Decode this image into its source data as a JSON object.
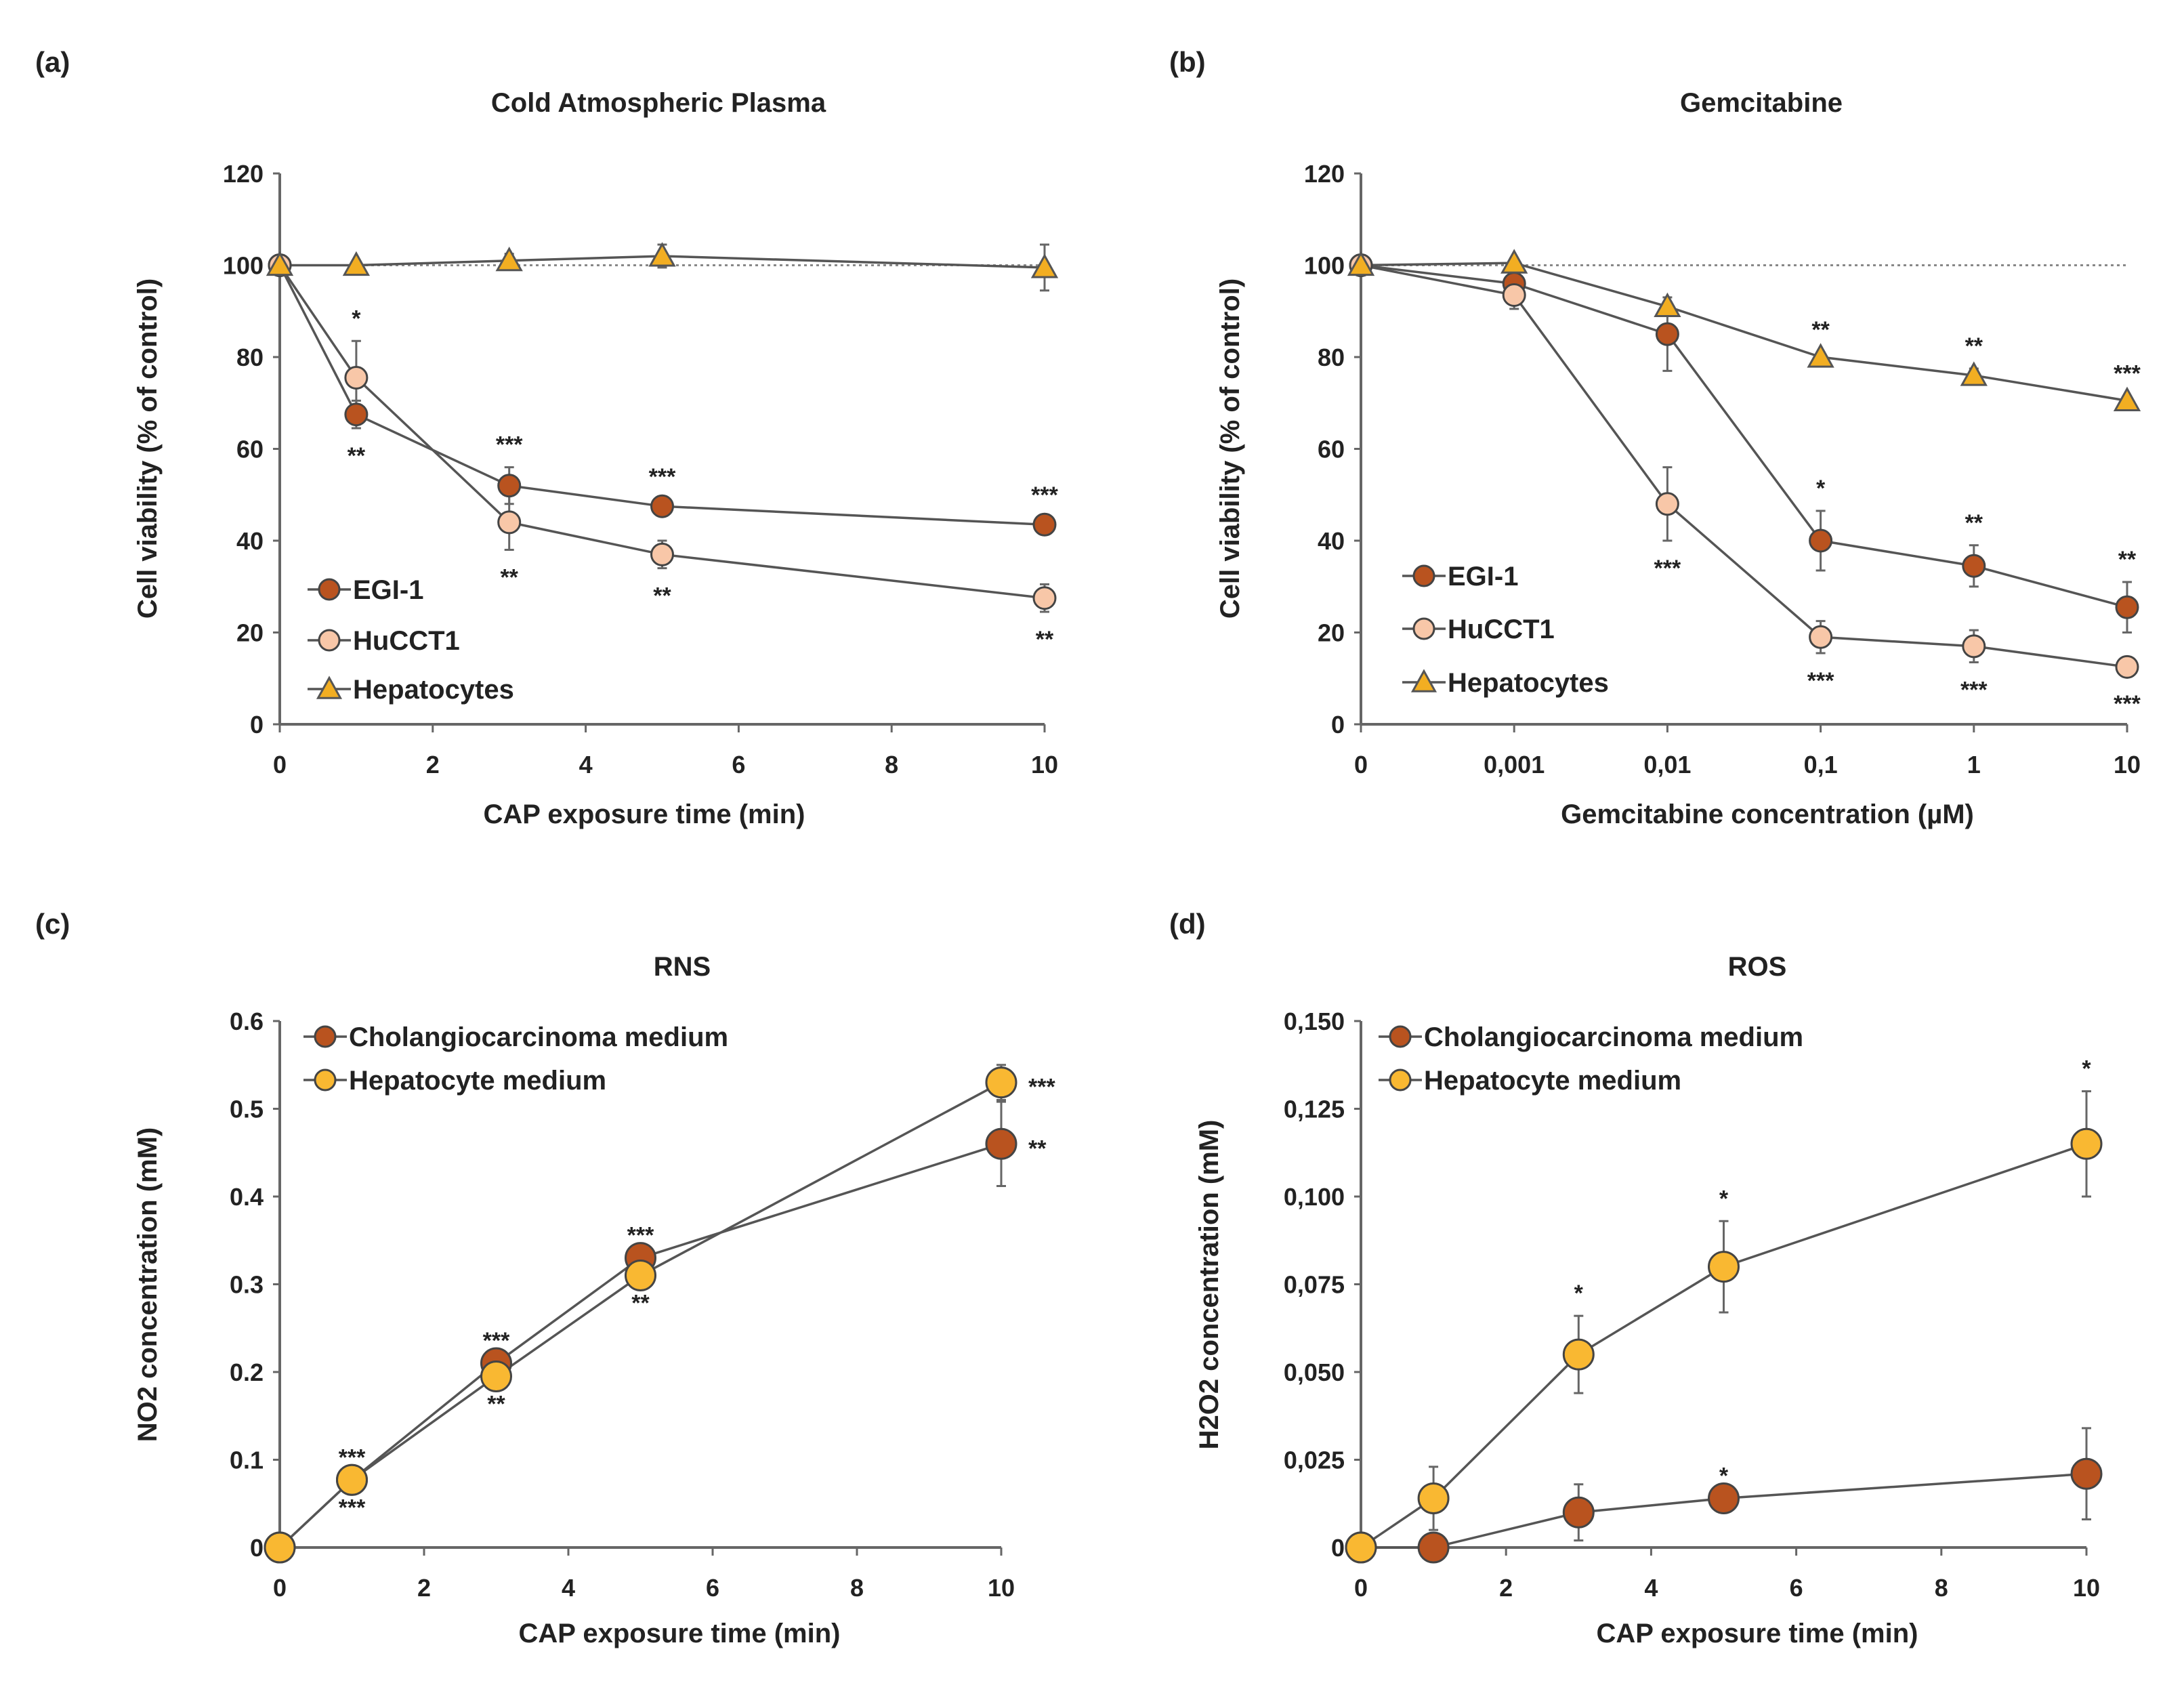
{
  "colors": {
    "egi": "#B9531F",
    "hucct": "#F8C7A8",
    "hep_tri": "#F2AE22",
    "hep_med": "#F9B832",
    "line": "#555555",
    "axis": "#666666"
  },
  "chart_data": [
    {
      "panel": "(a)",
      "type": "line",
      "title": "Cold Atmospheric Plasma",
      "xlabel": "CAP exposure time (min)",
      "ylabel": "Cell viability (% of control)",
      "x": [
        0,
        1,
        3,
        5,
        10
      ],
      "xlim": [
        0,
        10
      ],
      "xticks": [
        0,
        2,
        4,
        6,
        8,
        10
      ],
      "xtick_labels": [
        "0",
        "2",
        "4",
        "6",
        "8",
        "10"
      ],
      "ylim": [
        0,
        120
      ],
      "yticks": [
        0,
        20,
        40,
        60,
        80,
        100,
        120
      ],
      "ytick_labels": [
        "0",
        "20",
        "40",
        "60",
        "80",
        "100",
        "120"
      ],
      "reference_line": 100,
      "legend": "bottom-left",
      "series": [
        {
          "name": "EGI-1",
          "marker": "circle",
          "color_key": "egi",
          "values": [
            100,
            67.5,
            52,
            47.5,
            43.5
          ],
          "errors": [
            0,
            3,
            4,
            1.5,
            1.5
          ]
        },
        {
          "name": "HuCCT1",
          "marker": "circle",
          "color_key": "hucct",
          "values": [
            100,
            75.5,
            44,
            37,
            27.5
          ],
          "errors": [
            0,
            8,
            6,
            3,
            3
          ]
        },
        {
          "name": "Hepatocytes",
          "marker": "triangle",
          "color_key": "hep_tri",
          "values": [
            100,
            100,
            101,
            102,
            99.5
          ],
          "errors": [
            0,
            1,
            1.5,
            2.5,
            5
          ]
        }
      ],
      "annotations": [
        {
          "series": 1,
          "index": 1,
          "text": "*",
          "pos": "above"
        },
        {
          "series": 0,
          "index": 1,
          "text": "**",
          "pos": "below"
        },
        {
          "series": 0,
          "index": 2,
          "text": "***",
          "pos": "above"
        },
        {
          "series": 1,
          "index": 2,
          "text": "**",
          "pos": "below"
        },
        {
          "series": 0,
          "index": 3,
          "text": "***",
          "pos": "above"
        },
        {
          "series": 1,
          "index": 3,
          "text": "**",
          "pos": "below"
        },
        {
          "series": 0,
          "index": 4,
          "text": "***",
          "pos": "above"
        },
        {
          "series": 1,
          "index": 4,
          "text": "**",
          "pos": "below"
        }
      ]
    },
    {
      "panel": "(b)",
      "type": "line",
      "title": "Gemcitabine",
      "xlabel": "Gemcitabine concentration (µM)",
      "ylabel": "Cell viability (% of control)",
      "categories": [
        "0",
        "0,001",
        "0,01",
        "0,1",
        "1",
        "10"
      ],
      "ylim": [
        0,
        120
      ],
      "yticks": [
        0,
        20,
        40,
        60,
        80,
        100,
        120
      ],
      "ytick_labels": [
        "0",
        "20",
        "40",
        "60",
        "80",
        "100",
        "120"
      ],
      "reference_line": 100,
      "legend": "bottom-left",
      "series": [
        {
          "name": "EGI-1",
          "marker": "circle",
          "color_key": "egi",
          "values": [
            100,
            96,
            85,
            40,
            34.5,
            25.5
          ],
          "errors": [
            0,
            2,
            8,
            6.5,
            4.5,
            5.5
          ]
        },
        {
          "name": "HuCCT1",
          "marker": "circle",
          "color_key": "hucct",
          "values": [
            100,
            93.5,
            48,
            19,
            17,
            12.5
          ],
          "errors": [
            0,
            3,
            8,
            3.5,
            3.5,
            2
          ]
        },
        {
          "name": "Hepatocytes",
          "marker": "triangle",
          "color_key": "hep_tri",
          "values": [
            100,
            100.5,
            91,
            80,
            76,
            70.5
          ],
          "errors": [
            0,
            1,
            1,
            1,
            1.5,
            1
          ]
        }
      ],
      "annotations": [
        {
          "series": 2,
          "index": 3,
          "text": "**",
          "pos": "above"
        },
        {
          "series": 2,
          "index": 4,
          "text": "**",
          "pos": "above"
        },
        {
          "series": 2,
          "index": 5,
          "text": "***",
          "pos": "above"
        },
        {
          "series": 0,
          "index": 3,
          "text": "*",
          "pos": "above"
        },
        {
          "series": 0,
          "index": 4,
          "text": "**",
          "pos": "above"
        },
        {
          "series": 0,
          "index": 5,
          "text": "**",
          "pos": "above"
        },
        {
          "series": 1,
          "index": 2,
          "text": "***",
          "pos": "below"
        },
        {
          "series": 1,
          "index": 3,
          "text": "***",
          "pos": "below"
        },
        {
          "series": 1,
          "index": 4,
          "text": "***",
          "pos": "below"
        },
        {
          "series": 1,
          "index": 5,
          "text": "***",
          "pos": "below"
        }
      ]
    },
    {
      "panel": "(c)",
      "type": "line",
      "title": "RNS",
      "xlabel": "CAP exposure time (min)",
      "ylabel": "NO2 concentration (mM)",
      "x": [
        0,
        1,
        3,
        5,
        10
      ],
      "xlim": [
        0,
        10
      ],
      "xticks": [
        0,
        2,
        4,
        6,
        8,
        10
      ],
      "xtick_labels": [
        "0",
        "2",
        "4",
        "6",
        "8",
        "10"
      ],
      "ylim": [
        0,
        0.6
      ],
      "yticks": [
        0,
        0.1,
        0.2,
        0.3,
        0.4,
        0.5,
        0.6
      ],
      "ytick_labels": [
        "0",
        "0.1",
        "0.2",
        "0.3",
        "0.4",
        "0.5",
        "0.6"
      ],
      "legend": "top-left",
      "series": [
        {
          "name": "Cholangiocarcinoma medium",
          "marker": "circle",
          "color_key": "egi",
          "values": [
            0,
            0.077,
            0.21,
            0.33,
            0.46
          ],
          "errors": [
            0,
            0,
            0,
            0,
            0.048
          ]
        },
        {
          "name": "Hepatocyte medium",
          "marker": "circle",
          "color_key": "hep_med",
          "values": [
            0,
            0.077,
            0.195,
            0.31,
            0.53
          ],
          "errors": [
            0,
            0,
            0,
            0,
            0.02
          ]
        }
      ],
      "annotations": [
        {
          "series": 0,
          "index": 1,
          "text": "***",
          "pos": "above"
        },
        {
          "series": 1,
          "index": 1,
          "text": "***",
          "pos": "below"
        },
        {
          "series": 0,
          "index": 2,
          "text": "***",
          "pos": "above"
        },
        {
          "series": 1,
          "index": 2,
          "text": "**",
          "pos": "below"
        },
        {
          "series": 0,
          "index": 3,
          "text": "***",
          "pos": "above"
        },
        {
          "series": 1,
          "index": 3,
          "text": "**",
          "pos": "below"
        },
        {
          "series": 1,
          "index": 4,
          "text": "***",
          "pos": "right"
        },
        {
          "series": 0,
          "index": 4,
          "text": "**",
          "pos": "right"
        }
      ]
    },
    {
      "panel": "(d)",
      "type": "line",
      "title": "ROS",
      "xlabel": "CAP exposure time (min)",
      "ylabel": "H2O2 concentration (mM)",
      "x": [
        0,
        1,
        3,
        5,
        10
      ],
      "xlim": [
        0,
        10
      ],
      "xticks": [
        0,
        2,
        4,
        6,
        8,
        10
      ],
      "xtick_labels": [
        "0",
        "2",
        "4",
        "6",
        "8",
        "10"
      ],
      "ylim": [
        0,
        0.15
      ],
      "yticks": [
        0,
        0.025,
        0.05,
        0.075,
        0.1,
        0.125,
        0.15
      ],
      "ytick_labels": [
        "0",
        "0,025",
        "0,050",
        "0,075",
        "0,100",
        "0,125",
        "0,150"
      ],
      "legend": "top-left",
      "series": [
        {
          "name": "Cholangiocarcinoma medium",
          "marker": "circle",
          "color_key": "egi",
          "values": [
            0,
            0,
            0.01,
            0.014,
            0.021
          ],
          "errors": [
            0,
            0,
            0.008,
            0,
            0.013
          ]
        },
        {
          "name": "Hepatocyte medium",
          "marker": "circle",
          "color_key": "hep_med",
          "values": [
            0,
            0.014,
            0.055,
            0.08,
            0.115
          ],
          "errors": [
            0,
            0.009,
            0.011,
            0.013,
            0.015
          ]
        }
      ],
      "annotations": [
        {
          "series": 1,
          "index": 2,
          "text": "*",
          "pos": "above"
        },
        {
          "series": 1,
          "index": 3,
          "text": "*",
          "pos": "above"
        },
        {
          "series": 1,
          "index": 4,
          "text": "*",
          "pos": "above"
        },
        {
          "series": 0,
          "index": 3,
          "text": "*",
          "pos": "above"
        }
      ]
    }
  ]
}
